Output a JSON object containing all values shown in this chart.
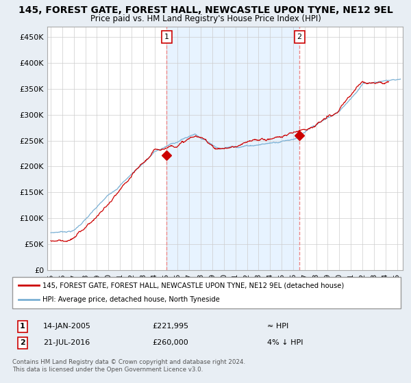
{
  "title": "145, FOREST GATE, FOREST HALL, NEWCASTLE UPON TYNE, NE12 9EL",
  "subtitle": "Price paid vs. HM Land Registry's House Price Index (HPI)",
  "ylabel_ticks": [
    "£0",
    "£50K",
    "£100K",
    "£150K",
    "£200K",
    "£250K",
    "£300K",
    "£350K",
    "£400K",
    "£450K"
  ],
  "ytick_values": [
    0,
    50000,
    100000,
    150000,
    200000,
    250000,
    300000,
    350000,
    400000,
    450000
  ],
  "ylim": [
    0,
    470000
  ],
  "xlim_start": 1994.7,
  "xlim_end": 2025.5,
  "sale1_x": 2005.04,
  "sale1_y": 221995,
  "sale1_label": "1",
  "sale1_date": "14-JAN-2005",
  "sale1_price": "£221,995",
  "sale1_hpi": "≈ HPI",
  "sale2_x": 2016.55,
  "sale2_y": 260000,
  "sale2_label": "2",
  "sale2_date": "21-JUL-2016",
  "sale2_price": "£260,000",
  "sale2_hpi": "4% ↓ HPI",
  "hpi_color": "#7ab0d4",
  "price_color": "#cc0000",
  "vline_color": "#ee8888",
  "shade_color": "#ddeeff",
  "background_color": "#e8eef4",
  "plot_bg": "#ffffff",
  "legend_line1": "145, FOREST GATE, FOREST HALL, NEWCASTLE UPON TYNE, NE12 9EL (detached house)",
  "legend_line2": "HPI: Average price, detached house, North Tyneside",
  "footer": "Contains HM Land Registry data © Crown copyright and database right 2024.\nThis data is licensed under the Open Government Licence v3.0."
}
